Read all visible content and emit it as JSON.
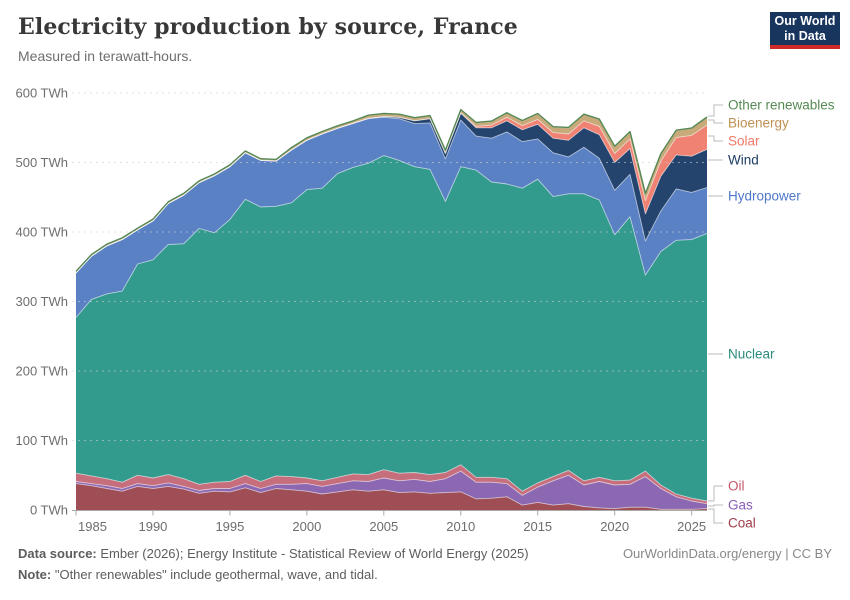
{
  "header": {
    "title": "Electricity production by source, France",
    "subtitle": "Measured in terawatt-hours.",
    "logo": {
      "line1": "Our World",
      "line2": "in Data",
      "bg_color": "#18355e",
      "bar_color": "#cf2b26"
    }
  },
  "footer": {
    "source_label": "Data source:",
    "source_text": "Ember (2026); Energy Institute - Statistical Review of World Energy (2025)",
    "note_label": "Note:",
    "note_text": "\"Other renewables\" include geothermal, wave, and tidal.",
    "url_text": "OurWorldinData.org/energy | CC BY"
  },
  "chart_data": {
    "type": "area",
    "stacked": true,
    "title": "Electricity production by source, France",
    "ylabel": "TWh",
    "ylim": [
      0,
      600
    ],
    "xlim": [
      1985,
      2026
    ],
    "grid": "horizontal-dashed",
    "legend_position": "right",
    "x": [
      1985,
      1986,
      1987,
      1988,
      1989,
      1990,
      1991,
      1992,
      1993,
      1994,
      1995,
      1996,
      1997,
      1998,
      1999,
      2000,
      2001,
      2002,
      2003,
      2004,
      2005,
      2006,
      2007,
      2008,
      2009,
      2010,
      2011,
      2012,
      2013,
      2014,
      2015,
      2016,
      2017,
      2018,
      2019,
      2020,
      2021,
      2022,
      2023,
      2024,
      2025,
      2026
    ],
    "x_ticks": [
      {
        "value": 1985,
        "label": "1985"
      },
      {
        "value": 1990,
        "label": "1990"
      },
      {
        "value": 1995,
        "label": "1995"
      },
      {
        "value": 2000,
        "label": "2000"
      },
      {
        "value": 2005,
        "label": "2005"
      },
      {
        "value": 2010,
        "label": "2010"
      },
      {
        "value": 2015,
        "label": "2015"
      },
      {
        "value": 2020,
        "label": "2020"
      },
      {
        "value": 2025,
        "label": "2025"
      }
    ],
    "y_ticks": [
      {
        "value": 0,
        "label": "0 TWh"
      },
      {
        "value": 100,
        "label": "100 TWh"
      },
      {
        "value": 200,
        "label": "200 TWh"
      },
      {
        "value": 300,
        "label": "300 TWh"
      },
      {
        "value": 400,
        "label": "400 TWh"
      },
      {
        "value": 500,
        "label": "500 TWh"
      },
      {
        "value": 600,
        "label": "600 TWh"
      }
    ],
    "series": [
      {
        "key": "coal",
        "name": "Coal",
        "color": "#9e4e54",
        "values": [
          38,
          35,
          31,
          27,
          34,
          31,
          34,
          30,
          24,
          27,
          26,
          32,
          25,
          31,
          29,
          27,
          23,
          26,
          29,
          27,
          29,
          25,
          26,
          24,
          25,
          26,
          16,
          17,
          19,
          7,
          11,
          7,
          9,
          5,
          3,
          2,
          4,
          4,
          1,
          1,
          1,
          2
        ]
      },
      {
        "key": "gas",
        "name": "Gas",
        "color": "#8b68b1",
        "values": [
          3,
          3,
          4,
          4,
          4,
          4,
          5,
          4,
          4,
          4,
          5,
          6,
          6,
          6,
          8,
          11,
          11,
          12,
          13,
          14,
          17,
          17,
          18,
          17,
          20,
          30,
          24,
          23,
          19,
          14,
          22,
          35,
          41,
          31,
          38,
          34,
          33,
          44,
          30,
          18,
          12,
          7
        ]
      },
      {
        "key": "oil",
        "name": "Oil",
        "color": "#c66e7b",
        "values": [
          12,
          11,
          10,
          9,
          12,
          11,
          12,
          11,
          9,
          9,
          10,
          12,
          10,
          12,
          11,
          8,
          8,
          9,
          10,
          10,
          12,
          11,
          10,
          10,
          9,
          9,
          7,
          7,
          7,
          6,
          6,
          6,
          7,
          6,
          6,
          6,
          6,
          8,
          5,
          4,
          4,
          4
        ]
      },
      {
        "key": "nuclear",
        "name": "Nuclear",
        "color": "#339a8e",
        "values": [
          224,
          254,
          266,
          275,
          304,
          314,
          331,
          338,
          368,
          359,
          377,
          397,
          395,
          388,
          394,
          415,
          421,
          437,
          441,
          448,
          452,
          450,
          440,
          439,
          390,
          429,
          442,
          425,
          424,
          436,
          437,
          403,
          398,
          413,
          399,
          354,
          379,
          282,
          336,
          365,
          372,
          385
        ]
      },
      {
        "key": "hydropower",
        "name": "Hydropower",
        "color": "#5b81c5",
        "values": [
          64,
          62,
          69,
          74,
          49,
          56,
          59,
          70,
          66,
          82,
          76,
          67,
          67,
          65,
          76,
          71,
          78,
          65,
          63,
          64,
          55,
          60,
          62,
          67,
          61,
          67,
          49,
          63,
          75,
          67,
          58,
          63,
          53,
          67,
          60,
          64,
          61,
          49,
          58,
          74,
          68,
          66
        ]
      },
      {
        "key": "wind",
        "name": "Wind",
        "color": "#24446e",
        "values": [
          0,
          0,
          0,
          0,
          0,
          0,
          0,
          0,
          0,
          0,
          0,
          0,
          0,
          0,
          0,
          0.1,
          0.1,
          0.3,
          0.4,
          0.6,
          1,
          2,
          4,
          6,
          8,
          10,
          12,
          15,
          16,
          17,
          21,
          21,
          24,
          28,
          34,
          40,
          37,
          39,
          50,
          49,
          52,
          55
        ]
      },
      {
        "key": "solar",
        "name": "Solar",
        "color": "#f08274",
        "values": [
          0,
          0,
          0,
          0,
          0,
          0,
          0,
          0,
          0,
          0,
          0,
          0,
          0,
          0,
          0,
          0,
          0,
          0,
          0,
          0,
          0,
          0,
          0,
          0,
          0.2,
          0.6,
          2,
          4,
          5,
          6,
          7,
          8,
          9,
          10,
          12,
          13,
          14,
          19,
          22,
          25,
          30,
          35
        ]
      },
      {
        "key": "bioenergy",
        "name": "Bioenergy",
        "color": "#c7a97a",
        "values": [
          2,
          2,
          2,
          2,
          2,
          2,
          2,
          2,
          2,
          2,
          2,
          2,
          2,
          2,
          3,
          3,
          3,
          3,
          3,
          4,
          4,
          4,
          4,
          4,
          4,
          4,
          5,
          5,
          6,
          7,
          8,
          8,
          9,
          9,
          10,
          10,
          10,
          10,
          10,
          10,
          10,
          11
        ]
      },
      {
        "key": "other_renewables",
        "name": "Other renewables",
        "color": "#558755",
        "values": [
          0.5,
          0.5,
          0.5,
          0.5,
          0.5,
          0.5,
          0.5,
          0.5,
          0.5,
          0.5,
          0.5,
          0.5,
          0.5,
          0.5,
          0.5,
          0.5,
          0.5,
          0.5,
          0.5,
          0.5,
          0.5,
          0.5,
          0.5,
          0.5,
          0.5,
          0.5,
          0.5,
          0.5,
          0.5,
          0.5,
          0.5,
          0.5,
          0.5,
          0.5,
          0.5,
          0.5,
          0.5,
          0.5,
          0.5,
          0.5,
          0.5,
          0.5
        ]
      }
    ],
    "legend": [
      {
        "key": "other_renewables",
        "label": "Other renewables",
        "color": "#568a53",
        "label_y": 105,
        "anchor_y": 116
      },
      {
        "key": "bioenergy",
        "label": "Bioenergy",
        "color": "#bf8f54",
        "label_y": 123,
        "anchor_y": 120
      },
      {
        "key": "solar",
        "label": "Solar",
        "color": "#f27a68",
        "label_y": 141,
        "anchor_y": 136
      },
      {
        "key": "wind",
        "label": "Wind",
        "color": "#1d3d63",
        "label_y": 160,
        "anchor_y": 160
      },
      {
        "key": "hydropower",
        "label": "Hydropower",
        "color": "#4f77c9",
        "label_y": 196,
        "anchor_y": 196
      },
      {
        "key": "nuclear",
        "label": "Nuclear",
        "color": "#2a8a7d",
        "label_y": 354,
        "anchor_y": 354
      },
      {
        "key": "oil",
        "label": "Oil",
        "color": "#c4566b",
        "label_y": 486,
        "anchor_y": 501
      },
      {
        "key": "gas",
        "label": "Gas",
        "color": "#8a5fb8",
        "label_y": 505,
        "anchor_y": 506
      },
      {
        "key": "coal",
        "label": "Coal",
        "color": "#a03e4a",
        "label_y": 523,
        "anchor_y": 509
      }
    ]
  }
}
